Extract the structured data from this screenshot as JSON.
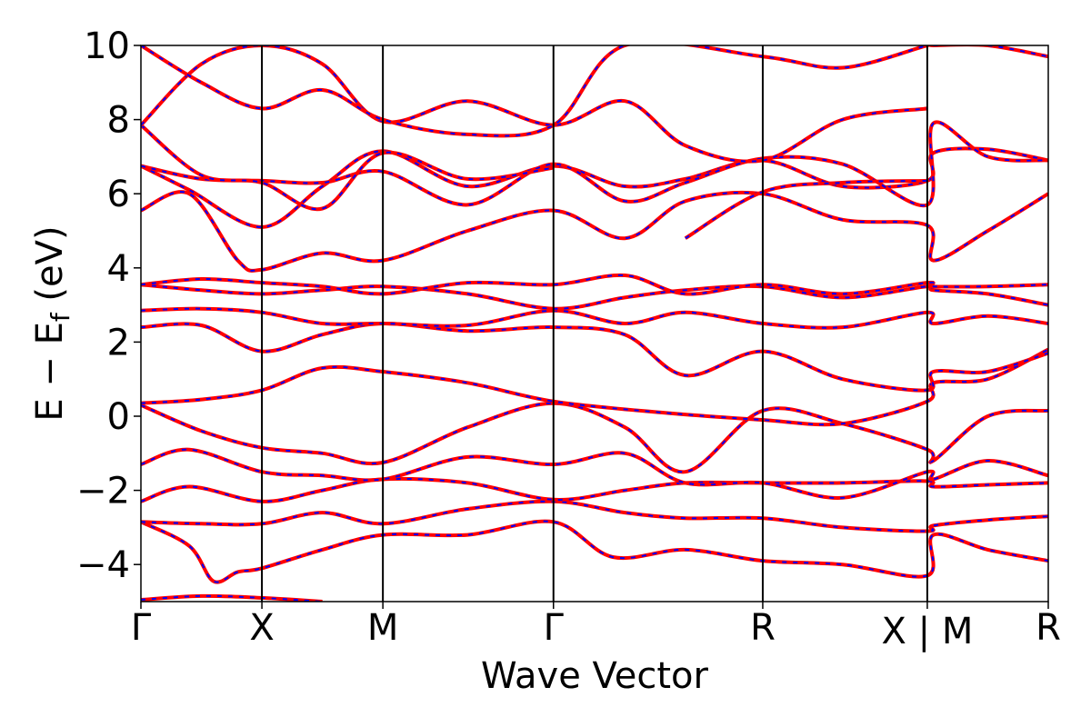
{
  "chart_data": {
    "type": "line",
    "xlabel": "Wave Vector",
    "ylabel": "E − E",
    "ylabel_sub": "f",
    "ylabel_unit": " (eV)",
    "ylim": [
      -5,
      10
    ],
    "yticks": [
      -4,
      -2,
      0,
      2,
      4,
      6,
      8,
      10
    ],
    "ytick_labels": [
      "−4",
      "−2",
      "0",
      "2",
      "4",
      "6",
      "8",
      "10"
    ],
    "xlim": [
      0,
      7.5
    ],
    "kpoints": [
      {
        "label": "Γ",
        "x": 0
      },
      {
        "label": "X",
        "x": 1.0
      },
      {
        "label": "M",
        "x": 2.0
      },
      {
        "label": "Γ",
        "x": 3.41
      },
      {
        "label": "R",
        "x": 5.14
      },
      {
        "label": "X | M",
        "x": 6.5
      },
      {
        "label": "R",
        "x": 7.5
      }
    ],
    "grid": false,
    "series_colors": {
      "band_a": "#ff0000",
      "band_b": "#0000ff"
    },
    "line_style": "red solid with blue dashed overlay",
    "bands": [
      [
        [
          0,
          -4.95
        ],
        [
          0.5,
          -4.85
        ],
        [
          1.0,
          -4.9
        ],
        [
          1.5,
          -5.0
        ]
      ],
      [
        [
          0,
          -2.85
        ],
        [
          0.4,
          -3.5
        ],
        [
          0.6,
          -4.45
        ],
        [
          0.8,
          -4.2
        ],
        [
          1.0,
          -4.1
        ],
        [
          1.5,
          -3.6
        ],
        [
          2.0,
          -3.2
        ],
        [
          2.7,
          -3.2
        ],
        [
          3.41,
          -2.85
        ],
        [
          3.9,
          -3.8
        ],
        [
          4.5,
          -3.6
        ],
        [
          5.14,
          -3.9
        ],
        [
          5.8,
          -4.0
        ],
        [
          6.5,
          -4.3
        ],
        [
          6.55,
          -3.2
        ],
        [
          7.0,
          -3.6
        ],
        [
          7.5,
          -3.9
        ]
      ],
      [
        [
          0,
          -2.85
        ],
        [
          0.5,
          -2.9
        ],
        [
          1.0,
          -2.9
        ],
        [
          1.5,
          -2.6
        ],
        [
          2.0,
          -2.9
        ],
        [
          2.7,
          -2.5
        ],
        [
          3.41,
          -2.3
        ],
        [
          4.0,
          -2.6
        ],
        [
          4.5,
          -2.75
        ],
        [
          5.14,
          -2.75
        ],
        [
          5.8,
          -3.0
        ],
        [
          6.5,
          -3.1
        ],
        [
          6.55,
          -2.95
        ],
        [
          7.0,
          -2.8
        ],
        [
          7.5,
          -2.7
        ]
      ],
      [
        [
          0,
          -2.3
        ],
        [
          0.4,
          -1.9
        ],
        [
          1.0,
          -2.3
        ],
        [
          1.5,
          -2.0
        ],
        [
          2.0,
          -1.7
        ],
        [
          2.7,
          -1.8
        ],
        [
          3.41,
          -2.25
        ],
        [
          4.0,
          -2.0
        ],
        [
          4.5,
          -1.8
        ],
        [
          5.14,
          -1.8
        ],
        [
          5.8,
          -1.8
        ],
        [
          6.5,
          -1.75
        ],
        [
          6.55,
          -1.9
        ],
        [
          7.0,
          -1.85
        ],
        [
          7.5,
          -1.8
        ]
      ],
      [
        [
          0,
          -1.3
        ],
        [
          0.4,
          -0.9
        ],
        [
          1.0,
          -1.5
        ],
        [
          1.5,
          -1.6
        ],
        [
          2.0,
          -1.7
        ],
        [
          2.7,
          -1.1
        ],
        [
          3.41,
          -1.3
        ],
        [
          4.0,
          -1.0
        ],
        [
          4.5,
          -1.8
        ],
        [
          5.14,
          -1.8
        ],
        [
          5.8,
          -2.2
        ],
        [
          6.5,
          -1.5
        ],
        [
          6.55,
          -1.7
        ],
        [
          7.0,
          -1.2
        ],
        [
          7.5,
          -1.6
        ]
      ],
      [
        [
          0,
          0.3
        ],
        [
          0.5,
          -0.4
        ],
        [
          1.0,
          -0.85
        ],
        [
          1.5,
          -1.0
        ],
        [
          2.0,
          -1.25
        ],
        [
          2.7,
          -0.3
        ],
        [
          3.41,
          0.35
        ],
        [
          4.0,
          -0.3
        ],
        [
          4.5,
          -1.5
        ],
        [
          5.14,
          0.15
        ],
        [
          5.8,
          -0.2
        ],
        [
          6.5,
          -0.9
        ],
        [
          6.55,
          -1.2
        ],
        [
          7.0,
          0.0
        ],
        [
          7.5,
          0.15
        ]
      ],
      [
        [
          0,
          0.35
        ],
        [
          0.5,
          0.45
        ],
        [
          1.0,
          0.7
        ],
        [
          1.5,
          1.3
        ],
        [
          2.0,
          1.2
        ],
        [
          2.7,
          0.9
        ],
        [
          3.41,
          0.4
        ],
        [
          4.3,
          0.1
        ],
        [
          5.14,
          -0.1
        ],
        [
          5.8,
          -0.2
        ],
        [
          6.5,
          0.4
        ],
        [
          6.55,
          0.9
        ],
        [
          7.0,
          1.0
        ],
        [
          7.5,
          1.8
        ]
      ],
      [
        [
          0,
          2.4
        ],
        [
          0.5,
          2.45
        ],
        [
          1.0,
          1.75
        ],
        [
          1.5,
          2.2
        ],
        [
          2.0,
          2.5
        ],
        [
          2.7,
          2.3
        ],
        [
          3.41,
          2.4
        ],
        [
          4.0,
          2.2
        ],
        [
          4.5,
          1.1
        ],
        [
          5.14,
          1.75
        ],
        [
          5.8,
          1.0
        ],
        [
          6.5,
          0.7
        ],
        [
          6.55,
          1.2
        ],
        [
          7.0,
          1.2
        ],
        [
          7.5,
          1.7
        ]
      ],
      [
        [
          0,
          2.85
        ],
        [
          0.5,
          2.9
        ],
        [
          1.0,
          2.8
        ],
        [
          1.5,
          2.5
        ],
        [
          2.0,
          2.5
        ],
        [
          2.7,
          2.45
        ],
        [
          3.41,
          2.85
        ],
        [
          4.0,
          2.5
        ],
        [
          4.5,
          2.8
        ],
        [
          5.14,
          2.5
        ],
        [
          5.8,
          2.4
        ],
        [
          6.5,
          2.8
        ],
        [
          6.55,
          2.5
        ],
        [
          7.0,
          2.7
        ],
        [
          7.5,
          2.5
        ]
      ],
      [
        [
          0,
          3.55
        ],
        [
          0.5,
          3.4
        ],
        [
          1.0,
          3.3
        ],
        [
          1.5,
          3.4
        ],
        [
          2.0,
          3.5
        ],
        [
          2.7,
          3.3
        ],
        [
          3.41,
          2.9
        ],
        [
          4.0,
          3.2
        ],
        [
          4.5,
          3.4
        ],
        [
          5.14,
          3.5
        ],
        [
          5.8,
          3.2
        ],
        [
          6.5,
          3.5
        ],
        [
          6.55,
          3.4
        ],
        [
          7.0,
          3.3
        ],
        [
          7.5,
          3.0
        ]
      ],
      [
        [
          0,
          3.55
        ],
        [
          0.5,
          3.7
        ],
        [
          1.0,
          3.6
        ],
        [
          1.5,
          3.5
        ],
        [
          2.0,
          3.3
        ],
        [
          2.7,
          3.6
        ],
        [
          3.41,
          3.55
        ],
        [
          4.0,
          3.8
        ],
        [
          4.5,
          3.3
        ],
        [
          5.14,
          3.55
        ],
        [
          5.8,
          3.3
        ],
        [
          6.5,
          3.6
        ],
        [
          6.55,
          3.5
        ],
        [
          7.0,
          3.5
        ],
        [
          7.5,
          3.55
        ]
      ],
      [
        [
          0,
          5.55
        ],
        [
          0.4,
          6.0
        ],
        [
          0.8,
          4.2
        ],
        [
          1.0,
          3.95
        ],
        [
          1.5,
          4.4
        ],
        [
          2.0,
          4.2
        ],
        [
          2.7,
          5.0
        ],
        [
          3.41,
          5.55
        ],
        [
          4.0,
          4.8
        ],
        [
          4.5,
          5.8
        ],
        [
          5.14,
          6.0
        ],
        [
          5.8,
          5.3
        ],
        [
          6.5,
          5.15
        ],
        [
          6.55,
          4.2
        ],
        [
          7.0,
          5.0
        ],
        [
          7.5,
          6.0
        ]
      ],
      [
        [
          0,
          6.75
        ],
        [
          0.4,
          6.1
        ],
        [
          1.0,
          5.1
        ],
        [
          1.5,
          6.2
        ],
        [
          2.0,
          7.15
        ],
        [
          2.7,
          6.2
        ],
        [
          3.41,
          6.75
        ],
        [
          4.0,
          6.2
        ],
        [
          4.5,
          6.4
        ],
        [
          5.14,
          6.9
        ],
        [
          5.8,
          6.2
        ],
        [
          6.5,
          6.35
        ],
        [
          6.55,
          7.1
        ],
        [
          7.0,
          7.2
        ],
        [
          7.5,
          6.9
        ]
      ],
      [
        [
          0,
          6.75
        ],
        [
          0.5,
          6.4
        ],
        [
          1.0,
          6.35
        ],
        [
          1.5,
          6.3
        ],
        [
          2.0,
          6.6
        ],
        [
          2.7,
          5.7
        ],
        [
          3.41,
          6.8
        ],
        [
          4.0,
          5.8
        ],
        [
          4.5,
          6.3
        ],
        [
          5.14,
          6.95
        ],
        [
          5.8,
          6.8
        ],
        [
          6.5,
          5.7
        ],
        [
          6.55,
          7.9
        ],
        [
          7.0,
          7.0
        ],
        [
          7.5,
          6.9
        ]
      ],
      [
        [
          0,
          7.85
        ],
        [
          0.5,
          6.5
        ],
        [
          1.0,
          6.3
        ],
        [
          1.5,
          5.6
        ],
        [
          2.0,
          7.1
        ],
        [
          2.7,
          6.4
        ],
        [
          3.41,
          6.7
        ]
      ],
      [
        [
          0,
          7.85
        ],
        [
          0.5,
          9.5
        ],
        [
          1.0,
          10.0
        ],
        [
          1.5,
          9.5
        ],
        [
          2.0,
          7.95
        ],
        [
          2.7,
          8.5
        ],
        [
          3.41,
          7.85
        ],
        [
          4.0,
          8.5
        ],
        [
          4.5,
          7.3
        ],
        [
          5.14,
          6.9
        ],
        [
          5.8,
          8.0
        ],
        [
          6.5,
          8.3
        ]
      ],
      [
        [
          0,
          10.0
        ],
        [
          0.5,
          9.0
        ],
        [
          1.0,
          8.3
        ],
        [
          1.5,
          8.8
        ],
        [
          2.0,
          8.0
        ],
        [
          2.7,
          7.6
        ],
        [
          3.41,
          7.85
        ],
        [
          4.0,
          10.0
        ],
        [
          5.14,
          9.7
        ],
        [
          5.8,
          9.4
        ],
        [
          6.5,
          10.0
        ],
        [
          6.55,
          10.0
        ],
        [
          7.0,
          10.0
        ],
        [
          7.5,
          9.7
        ]
      ],
      [
        [
          4.5,
          4.8
        ],
        [
          5.14,
          6.05
        ],
        [
          5.8,
          6.3
        ],
        [
          6.5,
          6.35
        ]
      ]
    ]
  }
}
